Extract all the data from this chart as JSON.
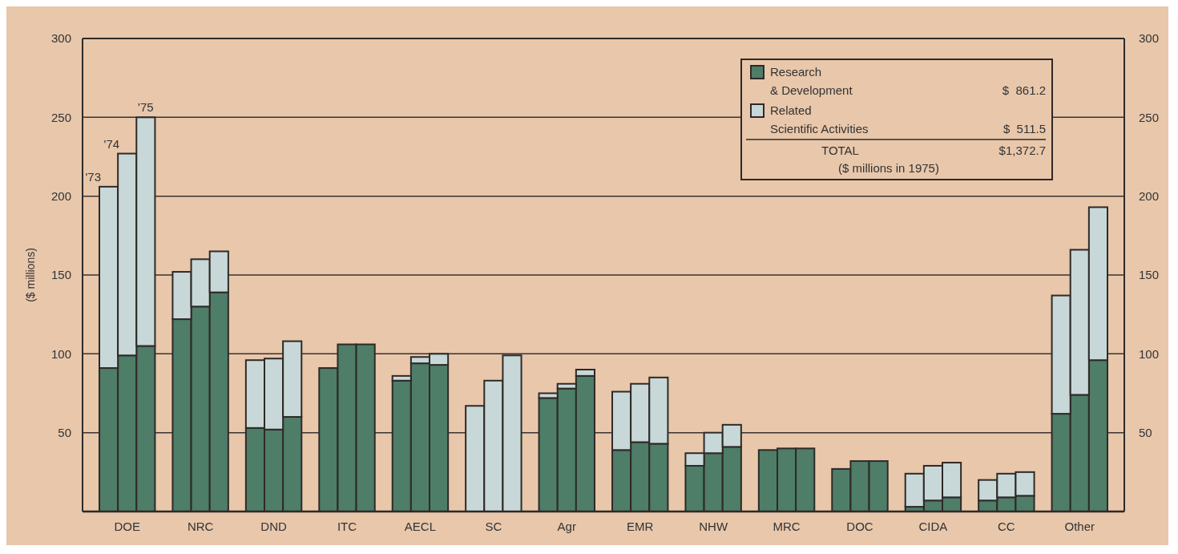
{
  "chart_data": {
    "type": "bar",
    "stacked": true,
    "ylabel": "($ millions)",
    "categories": [
      null,
      "DOE",
      null,
      null,
      "NRC",
      null,
      null,
      "DND",
      null,
      null,
      "ITC",
      null,
      null,
      "AECL",
      null,
      null,
      "SC",
      null,
      null,
      "Agr",
      null,
      null,
      "EMR",
      null,
      null,
      "NHW",
      null,
      null,
      "MRC",
      null,
      null,
      "DOC",
      null,
      null,
      "CIDA",
      null,
      null,
      "CC",
      null,
      null,
      "Other",
      null
    ],
    "series": [
      {
        "name": "Research & Development",
        "color": "#4e7d68",
        "values": [
          91,
          99,
          105,
          122,
          130,
          139,
          53,
          52,
          60,
          91,
          106,
          106,
          83,
          94,
          93,
          0,
          0,
          0,
          72,
          78,
          86,
          39,
          44,
          43,
          29,
          37,
          41,
          39,
          40,
          40,
          27,
          32,
          32,
          3,
          7,
          9,
          7,
          9,
          10,
          62,
          74,
          96
        ]
      },
      {
        "name": "Related Scientific Activities",
        "color": "#c8d8d8",
        "values": [
          115,
          128,
          145,
          30,
          30,
          26,
          43,
          45,
          48,
          0,
          0,
          0,
          3,
          4,
          7,
          67,
          83,
          99,
          3,
          3,
          4,
          37,
          37,
          42,
          8,
          13,
          14,
          0,
          0,
          0,
          0,
          0,
          0,
          21,
          22,
          22,
          13,
          15,
          15,
          75,
          92,
          97
        ]
      }
    ],
    "ylim": [
      0,
      300
    ],
    "yticks": [
      50,
      100,
      150,
      200,
      250,
      300
    ],
    "y2lim": [
      0,
      300
    ],
    "y2ticks": [
      50,
      100,
      150,
      200,
      250,
      300
    ],
    "grid": "y",
    "legend": "top right",
    "annotations": [
      "'73",
      "'74",
      "'75",
      "$  861.2",
      "$  511.5",
      "TOTAL",
      "$1,372.7",
      "($ millions in 1975)"
    ]
  }
}
